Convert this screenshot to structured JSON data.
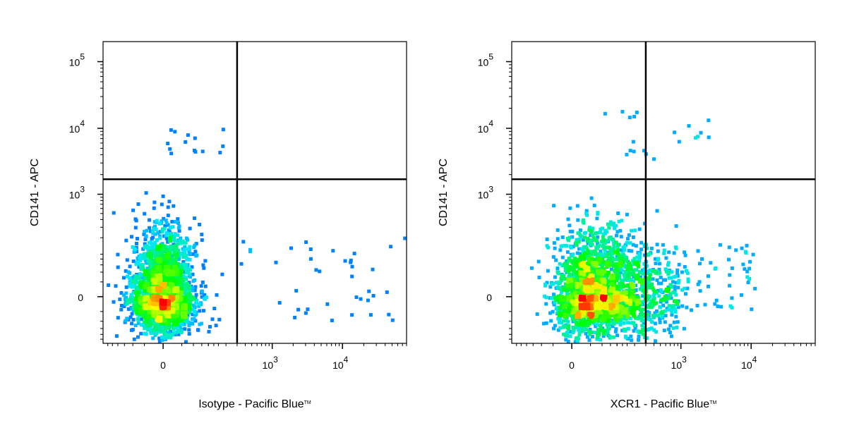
{
  "chart_data": [
    {
      "type": "scatter",
      "subtype": "flow-cytometry-density-dot-plot",
      "xlabel": "Isotype - Pacific Blue",
      "xlabel_tm": "TM",
      "ylabel": "CD141 - APC",
      "x_scale": "biexponential",
      "y_scale": "biexponential",
      "x_ticks": [
        {
          "value": 0,
          "label": "0"
        },
        {
          "value": 1000,
          "label": "10",
          "exp": "3"
        },
        {
          "value": 10000,
          "label": "10",
          "exp": "4"
        }
      ],
      "y_ticks": [
        {
          "value": 0,
          "label": "0"
        },
        {
          "value": 1000,
          "label": "10",
          "exp": "3"
        },
        {
          "value": 10000,
          "label": "10",
          "exp": "4"
        },
        {
          "value": 100000,
          "label": "10",
          "exp": "5"
        }
      ],
      "quadrant_gate": {
        "x": 300,
        "y": 1700
      },
      "grid": false,
      "legend": "none",
      "colormap": [
        "#0000ff",
        "#00e5ff",
        "#00ff00",
        "#ffff00",
        "#ff0000"
      ],
      "populations": [
        {
          "name": "main",
          "x_center": 0,
          "y_center": 0,
          "count": 2600
        },
        {
          "name": "cd141-high",
          "x_range": [
            0,
            300
          ],
          "y_range": [
            4000,
            11000
          ],
          "count": 14
        },
        {
          "name": "x-tail",
          "x_range": [
            300,
            80000
          ],
          "y_range": [
            -40,
            200
          ],
          "count": 40
        }
      ]
    },
    {
      "type": "scatter",
      "subtype": "flow-cytometry-density-dot-plot",
      "xlabel": "XCR1 - Pacific Blue",
      "xlabel_tm": "TM",
      "ylabel": "CD141 - APC",
      "x_scale": "biexponential",
      "y_scale": "biexponential",
      "x_ticks": [
        {
          "value": 0,
          "label": "0"
        },
        {
          "value": 1000,
          "label": "10",
          "exp": "3"
        },
        {
          "value": 10000,
          "label": "10",
          "exp": "4"
        }
      ],
      "y_ticks": [
        {
          "value": 0,
          "label": "0"
        },
        {
          "value": 1000,
          "label": "10",
          "exp": "3"
        },
        {
          "value": 10000,
          "label": "10",
          "exp": "4"
        },
        {
          "value": 100000,
          "label": "10",
          "exp": "5"
        }
      ],
      "quadrant_gate": {
        "x": 300,
        "y": 1700
      },
      "grid": false,
      "legend": "none",
      "colormap": [
        "#0000ff",
        "#00e5ff",
        "#00ff00",
        "#ffff00",
        "#ff0000"
      ],
      "populations": [
        {
          "name": "main",
          "x_center": 30,
          "y_center": 0,
          "count": 2600
        },
        {
          "name": "cd141-high",
          "x_range": [
            20,
            3000
          ],
          "y_range": [
            3000,
            20000
          ],
          "count": 20
        },
        {
          "name": "xcr1-tail",
          "x_range": [
            300,
            12000
          ],
          "y_range": [
            -20,
            150
          ],
          "count": 80
        }
      ]
    }
  ]
}
